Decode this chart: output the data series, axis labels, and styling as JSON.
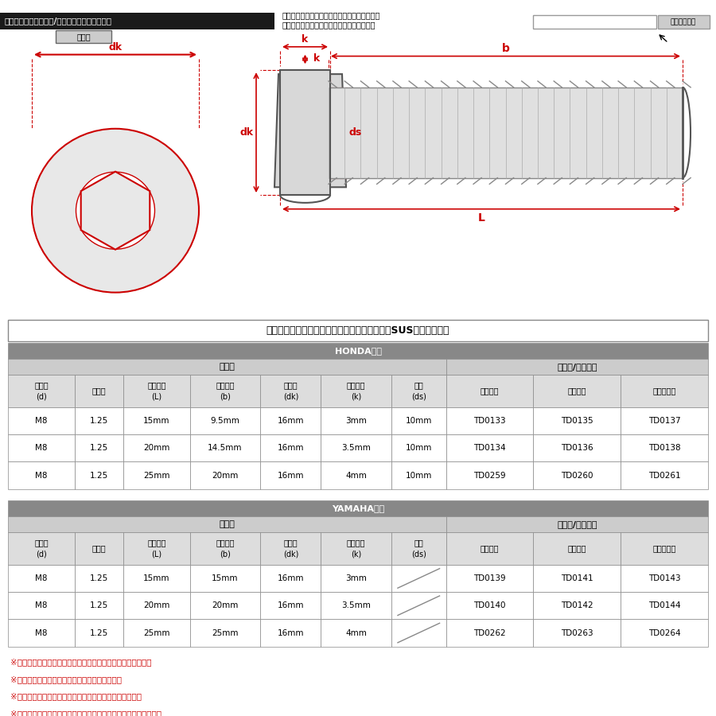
{
  "bg_color": "#ffffff",
  "header_bar_color": "#1a1a1a",
  "header_text_color": "#ffffff",
  "title_bar_text": "ラインアップ（カラー/サイズ品番一覧表共通）",
  "search_instruction": "ストア内検索に商品番号を入力して頂けますと\nお探しの商品に素早くアクセスが出来ます。",
  "search_button": "ストア内検索",
  "hexagon_label": "六角穴",
  "table_title": "ディスクローターボルト【フラットヘッド】（SUSステンレス）",
  "honda_label": "HONDA車用",
  "yamaha_label": "YAMAHA車用",
  "col_headers": [
    "呼び径\n(d)",
    "ピッチ",
    "呼び長さ\n(L)",
    "ネジ長さ\n(b)",
    "頭部径\n(dk)",
    "頭部高さ\n(k)",
    "軸径\n(ds)",
    "シルバー",
    "ゴールド",
    "焼きチタン"
  ],
  "group_headers_size": "サイズ",
  "group_headers_color": "カラー/当店品番",
  "honda_rows": [
    [
      "M8",
      "1.25",
      "15mm",
      "9.5mm",
      "16mm",
      "3mm",
      "10mm",
      "TD0133",
      "TD0135",
      "TD0137"
    ],
    [
      "M8",
      "1.25",
      "20mm",
      "14.5mm",
      "16mm",
      "3.5mm",
      "10mm",
      "TD0134",
      "TD0136",
      "TD0138"
    ],
    [
      "M8",
      "1.25",
      "25mm",
      "20mm",
      "16mm",
      "4mm",
      "10mm",
      "TD0259",
      "TD0260",
      "TD0261"
    ]
  ],
  "yamaha_rows": [
    [
      "M8",
      "1.25",
      "15mm",
      "15mm",
      "16mm",
      "3mm",
      "",
      "TD0139",
      "TD0141",
      "TD0143"
    ],
    [
      "M8",
      "1.25",
      "20mm",
      "20mm",
      "16mm",
      "3.5mm",
      "",
      "TD0140",
      "TD0142",
      "TD0144"
    ],
    [
      "M8",
      "1.25",
      "25mm",
      "25mm",
      "16mm",
      "4mm",
      "",
      "TD0262",
      "TD0263",
      "TD0264"
    ]
  ],
  "notes": [
    "※記載のサイズは平均値です。個体により誤差がございます。",
    "※個体差により着色が異なる場合がございます。",
    "※製造ロットにより、仕様変更になる場合がございます。",
    "※ご注文確定後の商品のご変更は出来ません。予めご了承下さい。"
  ],
  "note_color": "#cc0000",
  "table_border_color": "#999999",
  "header_bg_dark": "#555555",
  "header_bg_mid": "#aaaaaa",
  "header_bg_light": "#cccccc",
  "row_bg_white": "#ffffff",
  "honda_header_bg": "#888888",
  "yamaha_header_bg": "#888888",
  "diagram_line_color": "#cc0000",
  "diagram_fill_color": "#e8e8e8",
  "diagram_thread_color": "#888888"
}
